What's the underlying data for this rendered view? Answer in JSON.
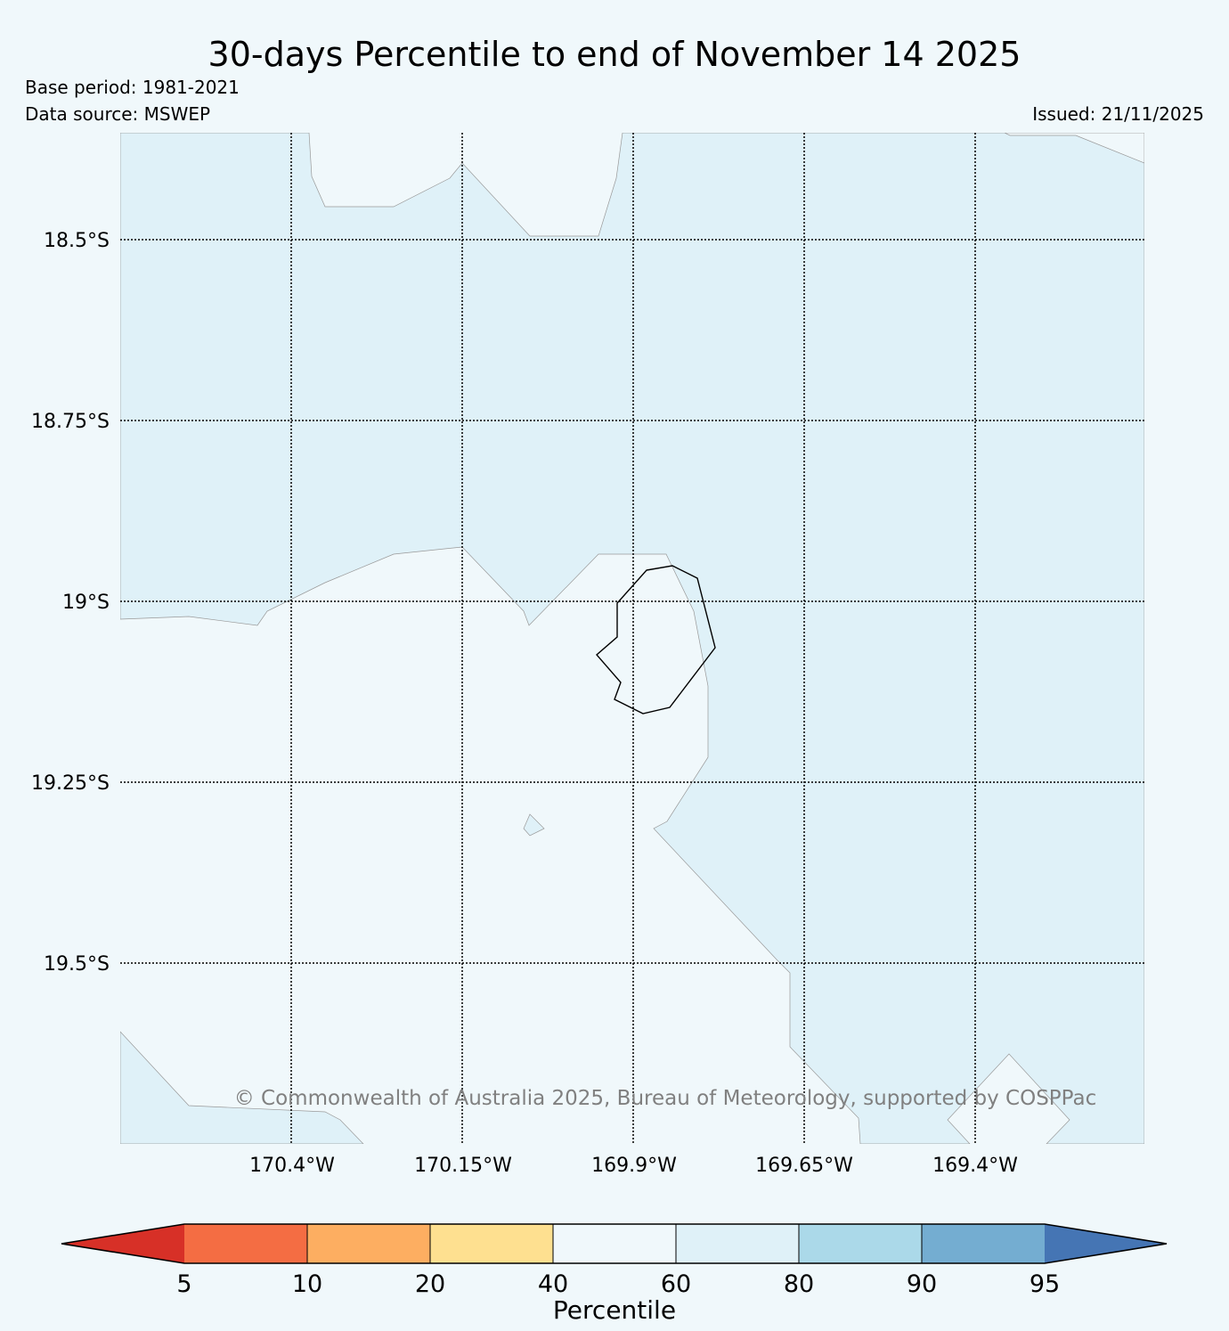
{
  "header": {
    "title": "30-days Percentile to end of November 14 2025",
    "base_period": "Base period: 1981-2021",
    "data_source": "Data source: MSWEP",
    "issued": "Issued: 21/11/2025"
  },
  "map": {
    "lat_labels": [
      "18.5°S",
      "18.75°S",
      "19°S",
      "19.25°S",
      "19.5°S"
    ],
    "lon_labels": [
      "170.4°W",
      "170.15°W",
      "169.9°W",
      "169.65°W",
      "169.4°W"
    ],
    "copyright": "© Commonwealth of Australia 2025, Bureau of Meteorology, supported by COSPPac",
    "fill_colors": {
      "40-60": "#f0f8fb",
      "60-80": "#dff1f8"
    }
  },
  "colorbar": {
    "label": "Percentile",
    "ticks": [
      "5",
      "10",
      "20",
      "40",
      "60",
      "80",
      "90",
      "95"
    ],
    "colors": {
      "below_5": "#d73027",
      "5-10": "#f46d43",
      "10-20": "#fdae61",
      "20-40": "#fee090",
      "40-60": "#f0f8fb",
      "60-80": "#dff1f8",
      "80-90": "#abd9e9",
      "90-95": "#74add1",
      "above_95": "#4575b4"
    }
  }
}
